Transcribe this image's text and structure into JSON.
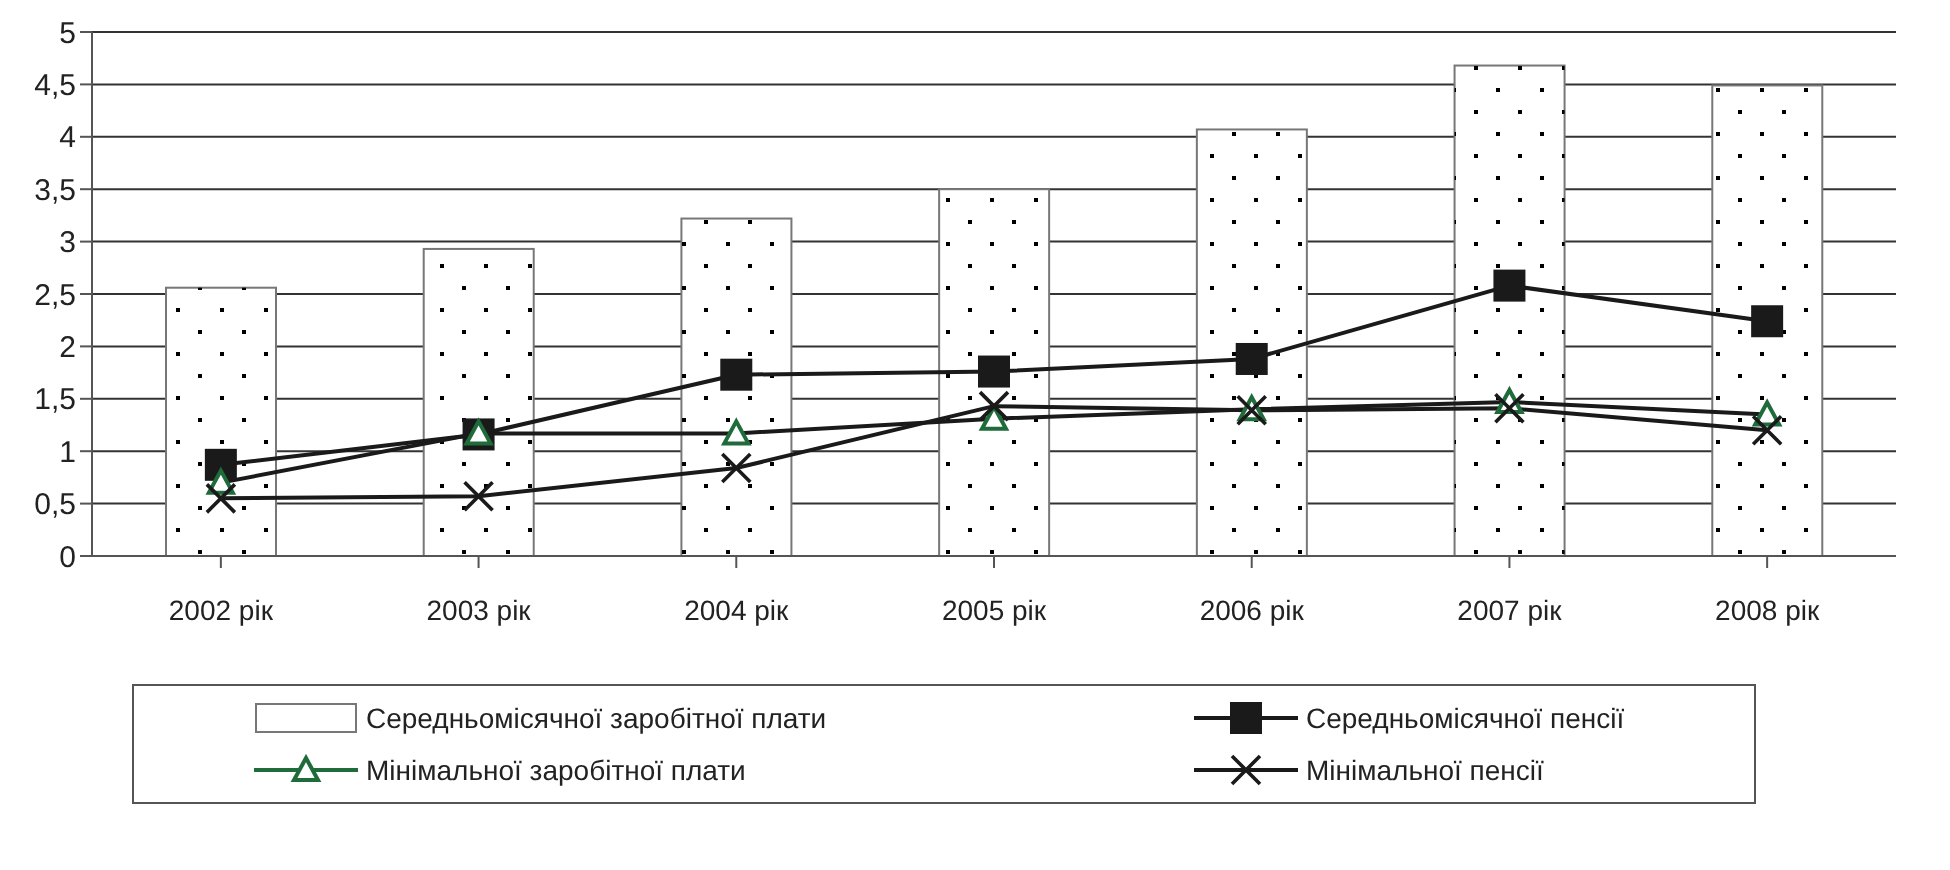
{
  "chart_data": {
    "type": "bar",
    "categories": [
      "2002 рік",
      "2003 рік",
      "2004 рік",
      "2005 рік",
      "2006 рік",
      "2007 рік",
      "2008 рік"
    ],
    "series": [
      {
        "name": "Середньомісячної заробітної плати",
        "type": "bar",
        "color": "#ffffff",
        "values": [
          2.56,
          2.93,
          3.22,
          3.5,
          4.07,
          4.68,
          4.49
        ]
      },
      {
        "name": "Середньомісячної пенсії",
        "type": "line",
        "marker": "square",
        "color": "#1a1a1a",
        "values": [
          0.87,
          1.16,
          1.73,
          1.76,
          1.88,
          2.58,
          2.24
        ]
      },
      {
        "name": "Мінімальної заробітної плати",
        "type": "line",
        "marker": "triangle",
        "color": "#1f6b3a",
        "values": [
          0.7,
          1.17,
          1.17,
          1.31,
          1.4,
          1.47,
          1.35
        ]
      },
      {
        "name": "Мінімальної пенсії",
        "type": "line",
        "marker": "cross",
        "color": "#1a1a1a",
        "values": [
          0.55,
          0.57,
          0.84,
          1.43,
          1.39,
          1.41,
          1.2
        ]
      }
    ],
    "ylim": [
      0,
      5
    ],
    "yticks": [
      0,
      {
        "value": 0.5,
        "label": "0,5"
      },
      1,
      {
        "value": 1.5,
        "label": "1,5"
      },
      2,
      {
        "value": 2.5,
        "label": "2,5"
      },
      3,
      {
        "value": 3.5,
        "label": "3,5"
      },
      4,
      {
        "value": 4.5,
        "label": "4,5"
      },
      5
    ],
    "grid": "y",
    "legend": "bottom"
  }
}
